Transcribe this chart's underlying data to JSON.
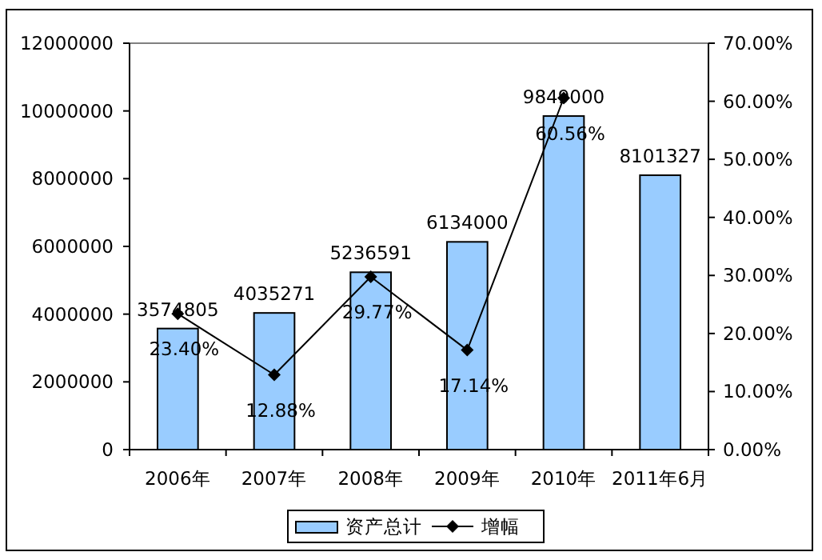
{
  "chart_data": {
    "type": "bar",
    "categories": [
      "2006年",
      "2007年",
      "2008年",
      "2009年",
      "2010年",
      "2011年6月"
    ],
    "series": [
      {
        "name": "资产总计",
        "type": "bar",
        "color": "#99ccff",
        "values": [
          3574805,
          4035271,
          5236591,
          6134000,
          9849000,
          8101327
        ],
        "value_labels": [
          "3574805",
          "4035271",
          "5236591",
          "6134000",
          "9849000",
          "8101327"
        ]
      },
      {
        "name": "增幅",
        "type": "line",
        "axis": "y2",
        "color": "#000000",
        "marker": "diamond",
        "values": [
          23.4,
          12.88,
          29.77,
          17.14,
          60.56,
          null
        ],
        "value_labels": [
          "23.40%",
          "12.88%",
          "29.77%",
          "17.14%",
          "60.56%",
          null
        ]
      }
    ],
    "ylim": [
      0,
      12000000
    ],
    "yticks": [
      0,
      2000000,
      4000000,
      6000000,
      8000000,
      10000000,
      12000000
    ],
    "y2lim": [
      0,
      70
    ],
    "y2ticks": [
      {
        "value": 0,
        "label": "0.00%"
      },
      {
        "value": 10,
        "label": "10.00%"
      },
      {
        "value": 20,
        "label": "20.00%"
      },
      {
        "value": 30,
        "label": "30.00%"
      },
      {
        "value": 40,
        "label": "40.00%"
      },
      {
        "value": 50,
        "label": "50.00%"
      },
      {
        "value": 60,
        "label": "60.00%"
      },
      {
        "value": 70,
        "label": "70.00%"
      }
    ],
    "legend": "bottom",
    "grid": false
  }
}
